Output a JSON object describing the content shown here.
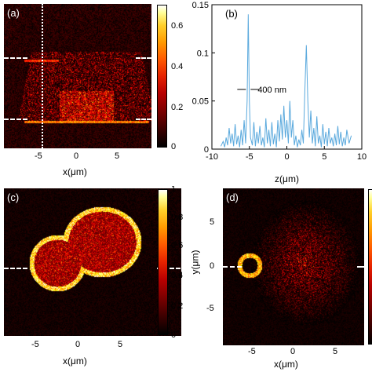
{
  "panels": {
    "a": {
      "label": "(a)",
      "xticks": [
        "-5",
        "0",
        "5"
      ],
      "xlabel": "x(μm)",
      "colorbar_ticks": [
        "0.6",
        "0.4",
        "0.2",
        "0"
      ],
      "colorbar_range": [
        0,
        0.7
      ]
    },
    "b": {
      "label": "(b)",
      "xlabel": "z(μm)",
      "annotation": "400 nm"
    },
    "c": {
      "label": "(c)",
      "xticks": [
        "-5",
        "0",
        "5"
      ],
      "xlabel": "x(μm)",
      "colorbar_ticks": [
        "1",
        "0.8",
        "0.6",
        "0.4",
        "0.2",
        "0"
      ],
      "colorbar_range": [
        0,
        1
      ]
    },
    "d": {
      "label": "(d)",
      "xticks": [
        "-5",
        "0",
        "5"
      ],
      "xlabel": "x(μm)",
      "ylabel": "y(μm)",
      "yticks": [
        "5",
        "0",
        "-5"
      ]
    }
  },
  "chart_data": {
    "type": "line",
    "title": "",
    "xlabel": "z(μm)",
    "ylabel": "",
    "xlim": [
      -10,
      10
    ],
    "ylim": [
      0,
      0.15
    ],
    "xticks": [
      -10,
      -5,
      0,
      5,
      10
    ],
    "yticks": [
      0,
      0.05,
      0.1,
      0.15
    ],
    "grid": false,
    "line_color": "#5aa9dd",
    "annotation": "400 nm",
    "x": [
      -8.8,
      -8.5,
      -8.3,
      -8.1,
      -7.9,
      -7.7,
      -7.5,
      -7.3,
      -7.1,
      -6.9,
      -6.7,
      -6.5,
      -6.3,
      -6.1,
      -5.9,
      -5.7,
      -5.5,
      -5.3,
      -5.15,
      -5.0,
      -4.85,
      -4.6,
      -4.4,
      -4.2,
      -4.0,
      -3.8,
      -3.6,
      -3.4,
      -3.2,
      -3.0,
      -2.8,
      -2.6,
      -2.4,
      -2.2,
      -2.0,
      -1.8,
      -1.6,
      -1.4,
      -1.2,
      -1.0,
      -0.8,
      -0.6,
      -0.4,
      -0.2,
      0.0,
      0.2,
      0.4,
      0.6,
      0.8,
      1.0,
      1.2,
      1.4,
      1.6,
      1.8,
      2.0,
      2.2,
      2.4,
      2.6,
      2.8,
      3.0,
      3.2,
      3.4,
      3.6,
      3.8,
      4.0,
      4.2,
      4.4,
      4.6,
      4.8,
      5.0,
      5.2,
      5.4,
      5.6,
      5.8,
      6.0,
      6.2,
      6.4,
      6.6,
      6.8,
      7.0,
      7.2,
      7.4,
      7.6,
      7.8,
      8.0,
      8.3,
      8.6
    ],
    "y": [
      0.003,
      0.008,
      0.002,
      0.012,
      0.004,
      0.022,
      0.006,
      0.016,
      0.003,
      0.026,
      0.005,
      0.014,
      0.002,
      0.02,
      0.004,
      0.03,
      0.006,
      0.05,
      0.14,
      0.05,
      0.012,
      0.004,
      0.028,
      0.003,
      0.018,
      0.006,
      0.024,
      0.004,
      0.012,
      0.002,
      0.032,
      0.006,
      0.02,
      0.003,
      0.028,
      0.005,
      0.016,
      0.002,
      0.03,
      0.008,
      0.036,
      0.01,
      0.045,
      0.012,
      0.03,
      0.006,
      0.05,
      0.012,
      0.03,
      0.004,
      0.014,
      0.002,
      0.01,
      0.004,
      0.02,
      0.006,
      0.06,
      0.108,
      0.05,
      0.012,
      0.04,
      0.006,
      0.022,
      0.003,
      0.034,
      0.006,
      0.014,
      0.002,
      0.026,
      0.005,
      0.018,
      0.003,
      0.022,
      0.006,
      0.012,
      0.003,
      0.016,
      0.004,
      0.024,
      0.005,
      0.018,
      0.003,
      0.012,
      0.004,
      0.02,
      0.006,
      0.014
    ]
  }
}
